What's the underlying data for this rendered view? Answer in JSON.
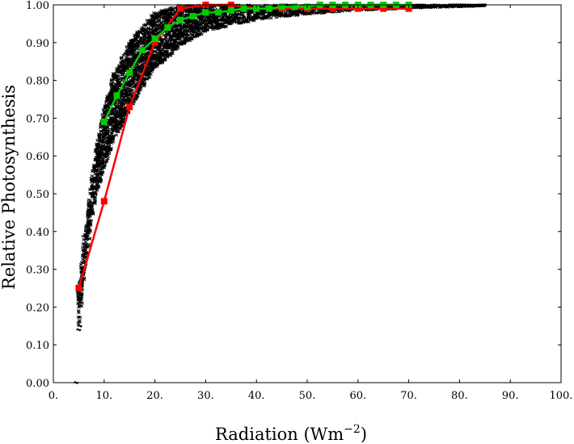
{
  "chart_data": {
    "type": "scatter",
    "xlabel_main": "Radiation (Wm",
    "xlabel_sup": "−2",
    "xlabel_close": ")",
    "ylabel": "Relative Photosynthesis",
    "xlim": [
      0,
      100
    ],
    "ylim": [
      0,
      1.0
    ],
    "xticks": [
      0,
      10,
      20,
      30,
      40,
      50,
      60,
      70,
      80,
      90,
      100
    ],
    "xtick_labels": [
      "0.",
      "10.",
      "20.",
      "30.",
      "40.",
      "50.",
      "60.",
      "70.",
      "80.",
      "90.",
      "100."
    ],
    "yticks": [
      0,
      0.1,
      0.2,
      0.3,
      0.4,
      0.5,
      0.6,
      0.7,
      0.8,
      0.9,
      1.0
    ],
    "ytick_labels": [
      "0.00",
      "0.10",
      "0.20",
      "0.30",
      "0.40",
      "0.50",
      "0.60",
      "0.70",
      "0.80",
      "0.90",
      "1.00"
    ],
    "grid": false,
    "scatter_cloud": {
      "color": "#000000",
      "lower_envelope": [
        [
          5,
          0.14
        ],
        [
          6,
          0.28
        ],
        [
          7,
          0.38
        ],
        [
          8,
          0.46
        ],
        [
          9,
          0.52
        ],
        [
          10,
          0.57
        ],
        [
          12,
          0.64
        ],
        [
          15,
          0.72
        ],
        [
          18,
          0.79
        ],
        [
          20,
          0.83
        ],
        [
          25,
          0.89
        ],
        [
          30,
          0.93
        ],
        [
          40,
          0.96
        ],
        [
          50,
          0.975
        ],
        [
          60,
          0.985
        ],
        [
          70,
          0.99
        ],
        [
          80,
          0.995
        ],
        [
          85,
          0.997
        ]
      ],
      "upper_envelope": [
        [
          5,
          0.26
        ],
        [
          6,
          0.38
        ],
        [
          7,
          0.48
        ],
        [
          8,
          0.58
        ],
        [
          9,
          0.66
        ],
        [
          10,
          0.73
        ],
        [
          12,
          0.82
        ],
        [
          15,
          0.9
        ],
        [
          18,
          0.95
        ],
        [
          20,
          0.98
        ],
        [
          25,
          1.0
        ],
        [
          85,
          1.0
        ]
      ],
      "outliers": [
        [
          4.5,
          0.0
        ],
        [
          5,
          0.14
        ],
        [
          5.2,
          0.15
        ],
        [
          5.5,
          0.27
        ],
        [
          6,
          0.35
        ],
        [
          6.5,
          0.4
        ]
      ]
    },
    "series": [
      {
        "color": "#ff0000",
        "x": [
          5,
          10,
          15,
          20,
          25,
          30,
          35,
          40,
          45,
          50,
          55,
          60,
          65,
          70
        ],
        "values": [
          0.25,
          0.48,
          0.73,
          0.9,
          0.99,
          1.0,
          1.0,
          0.99,
          0.99,
          0.99,
          0.99,
          0.99,
          0.99,
          0.99
        ]
      },
      {
        "color": "#00cc00",
        "x": [
          10,
          12.5,
          15,
          17.5,
          20,
          22.5,
          25,
          27.5,
          30,
          32.5,
          35,
          37.5,
          40,
          42.5,
          45,
          47.5,
          50,
          52.5,
          55,
          57.5,
          60,
          62.5,
          65,
          67.5,
          70
        ],
        "values": [
          0.69,
          0.76,
          0.82,
          0.88,
          0.91,
          0.94,
          0.96,
          0.97,
          0.98,
          0.98,
          0.985,
          0.99,
          0.99,
          0.99,
          0.995,
          0.995,
          0.995,
          1.0,
          1.0,
          1.0,
          1.0,
          1.0,
          1.0,
          1.0,
          1.0
        ]
      }
    ]
  }
}
